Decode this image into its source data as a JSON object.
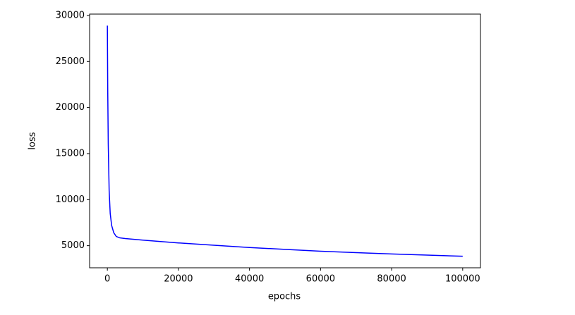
{
  "chart_data": {
    "type": "line",
    "x_label": "epochs",
    "y_label": "loss",
    "x": [
      0,
      100,
      250,
      500,
      800,
      1200,
      1800,
      2500,
      3500,
      5000,
      10000,
      20000,
      30000,
      40000,
      50000,
      60000,
      70000,
      80000,
      90000,
      100000
    ],
    "values": [
      28900,
      22000,
      16000,
      11000,
      8500,
      7200,
      6400,
      6000,
      5850,
      5780,
      5600,
      5300,
      5050,
      4800,
      4600,
      4400,
      4250,
      4100,
      3980,
      3850
    ],
    "color": "#0000ff",
    "xlim": [
      -5000,
      105000
    ],
    "xticks": [
      0,
      20000,
      40000,
      60000,
      80000,
      100000
    ],
    "ylim": [
      2600,
      30150
    ],
    "yticks": [
      5000,
      10000,
      15000,
      20000,
      25000,
      30000
    ],
    "grid": false
  }
}
